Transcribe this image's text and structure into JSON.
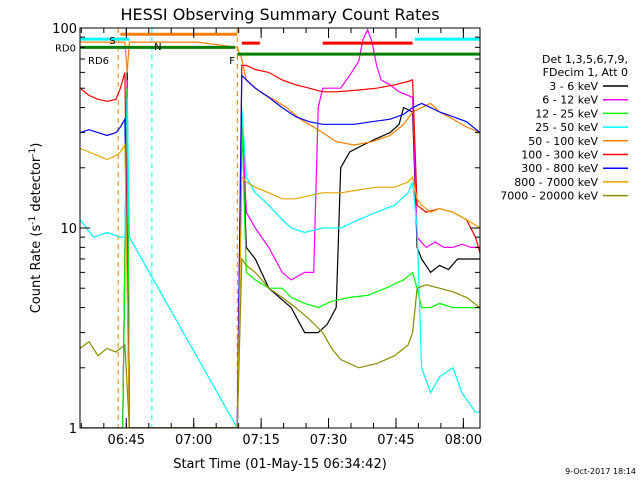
{
  "chart_data": {
    "type": "line",
    "title": "HESSI Observing Summary Count Rates",
    "xlabel": "Start Time (01-May-15 06:34:42)",
    "ylabel": "Count Rate (s",
    "ylabel_sup": "-1",
    "ylabel_tail": " detector",
    "ylabel_tail_sup": "-1",
    "ylabel_close": ")",
    "y_scale": "log",
    "ylim": [
      1,
      100
    ],
    "xlim_minutes": [
      0,
      89
    ],
    "grid": false,
    "legend_placement": "right",
    "x_ticks": [
      {
        "label": "06:45",
        "minutes": 10.3
      },
      {
        "label": "07:00",
        "minutes": 25.3
      },
      {
        "label": "07:15",
        "minutes": 40.3
      },
      {
        "label": "07:30",
        "minutes": 55.3
      },
      {
        "label": "07:45",
        "minutes": 70.3
      },
      {
        "label": "08:00",
        "minutes": 85.3
      }
    ],
    "y_ticks": [
      {
        "label": "1",
        "value": 1
      },
      {
        "label": "10",
        "value": 10
      },
      {
        "label": "100",
        "value": 100
      }
    ],
    "legend_header": [
      "Det 1,3,5,6,7,9,",
      "FDecim 1, Att 0"
    ],
    "series": [
      {
        "name": "3 - 6 keV",
        "color": "#000000",
        "points": [
          [
            0,
            1
          ],
          [
            9.5,
            1
          ],
          [
            10.5,
            60
          ],
          [
            11,
            1
          ],
          [
            35,
            1
          ],
          [
            36,
            35
          ],
          [
            37,
            8
          ],
          [
            39,
            7
          ],
          [
            42,
            5
          ],
          [
            47,
            4
          ],
          [
            50,
            3
          ],
          [
            53,
            3
          ],
          [
            55,
            3.3
          ],
          [
            57,
            4
          ],
          [
            58,
            20
          ],
          [
            60,
            24
          ],
          [
            63,
            26
          ],
          [
            66,
            28
          ],
          [
            69,
            30
          ],
          [
            71,
            33
          ],
          [
            72,
            40
          ],
          [
            74,
            38
          ],
          [
            75,
            8
          ],
          [
            76,
            7
          ],
          [
            78,
            6
          ],
          [
            80,
            6.5
          ],
          [
            82,
            6.2
          ],
          [
            84,
            7
          ],
          [
            87,
            7
          ],
          [
            89,
            7
          ]
        ]
      },
      {
        "name": "6 - 12 keV",
        "color": "#ff00ff",
        "points": [
          [
            0,
            1
          ],
          [
            9.5,
            1
          ],
          [
            10.5,
            55
          ],
          [
            11,
            1
          ],
          [
            35,
            1
          ],
          [
            36,
            38
          ],
          [
            37,
            12
          ],
          [
            39,
            10
          ],
          [
            42,
            8
          ],
          [
            45,
            6
          ],
          [
            47,
            5.5
          ],
          [
            50,
            6
          ],
          [
            52,
            6
          ],
          [
            53,
            40
          ],
          [
            54,
            50
          ],
          [
            58,
            50
          ],
          [
            60,
            58
          ],
          [
            62,
            68
          ],
          [
            63,
            88
          ],
          [
            64,
            98
          ],
          [
            65,
            85
          ],
          [
            66,
            65
          ],
          [
            67,
            55
          ],
          [
            69,
            52
          ],
          [
            71,
            48
          ],
          [
            73,
            46
          ],
          [
            74,
            45
          ],
          [
            75,
            9
          ],
          [
            77,
            8
          ],
          [
            79,
            8.5
          ],
          [
            81,
            8
          ],
          [
            83,
            8
          ],
          [
            85,
            8.3
          ],
          [
            87,
            8
          ],
          [
            89,
            8
          ]
        ]
      },
      {
        "name": "12 - 25 keV",
        "color": "#00ff00",
        "points": [
          [
            0,
            1
          ],
          [
            9.5,
            1
          ],
          [
            10.5,
            50
          ],
          [
            11,
            1
          ],
          [
            35,
            1
          ],
          [
            36,
            35
          ],
          [
            37,
            6
          ],
          [
            39,
            5.5
          ],
          [
            42,
            5
          ],
          [
            45,
            5
          ],
          [
            47,
            4.5
          ],
          [
            50,
            4.2
          ],
          [
            53,
            4
          ],
          [
            56,
            4.3
          ],
          [
            60,
            4.5
          ],
          [
            64,
            4.6
          ],
          [
            68,
            5
          ],
          [
            72,
            5.5
          ],
          [
            74,
            6
          ],
          [
            75,
            5
          ],
          [
            76,
            4
          ],
          [
            78,
            4
          ],
          [
            80,
            4.2
          ],
          [
            83,
            4
          ],
          [
            86,
            4
          ],
          [
            89,
            4
          ]
        ]
      },
      {
        "name": "25 - 50 keV",
        "color": "#00ffff",
        "points": [
          [
            0,
            11
          ],
          [
            3,
            9
          ],
          [
            6,
            9.5
          ],
          [
            9,
            9
          ],
          [
            10,
            9
          ],
          [
            10.5,
            45
          ],
          [
            11,
            9
          ],
          [
            35,
            1
          ],
          [
            36,
            40
          ],
          [
            37,
            18
          ],
          [
            39,
            15
          ],
          [
            42,
            13
          ],
          [
            45,
            11
          ],
          [
            47,
            10
          ],
          [
            50,
            9.5
          ],
          [
            54,
            10
          ],
          [
            58,
            10
          ],
          [
            62,
            11
          ],
          [
            66,
            12
          ],
          [
            70,
            13
          ],
          [
            73,
            15
          ],
          [
            74,
            17
          ],
          [
            75,
            10
          ],
          [
            76,
            2
          ],
          [
            78,
            1.5
          ],
          [
            80,
            1.8
          ],
          [
            83,
            2
          ],
          [
            85,
            1.5
          ],
          [
            88,
            1.2
          ],
          [
            89,
            1.2
          ]
        ]
      },
      {
        "name": "50 - 100 keV",
        "color": "#ff7f00",
        "points": [
          [
            0,
            85
          ],
          [
            10,
            85
          ],
          [
            10.5,
            60
          ],
          [
            11,
            85
          ],
          [
            25,
            85
          ],
          [
            26,
            85
          ],
          [
            35,
            80
          ],
          [
            36,
            70
          ],
          [
            37,
            55
          ],
          [
            40,
            48
          ],
          [
            43,
            44
          ],
          [
            46,
            40
          ],
          [
            49,
            35
          ],
          [
            52,
            32
          ],
          [
            54,
            30
          ],
          [
            57,
            27
          ],
          [
            61,
            26
          ],
          [
            65,
            27
          ],
          [
            69,
            29
          ],
          [
            72,
            33
          ],
          [
            74,
            38
          ],
          [
            76,
            40
          ],
          [
            78,
            42
          ],
          [
            80,
            38
          ],
          [
            83,
            35
          ],
          [
            86,
            32
          ],
          [
            89,
            30
          ]
        ]
      },
      {
        "name": "100 - 300 keV",
        "color": "#ff0000",
        "points": [
          [
            0,
            50
          ],
          [
            2,
            46
          ],
          [
            4,
            44
          ],
          [
            6,
            43
          ],
          [
            8,
            44
          ],
          [
            9,
            50
          ],
          [
            10,
            60
          ],
          [
            11,
            1
          ],
          [
            35,
            1
          ],
          [
            36,
            65
          ],
          [
            37,
            65
          ],
          [
            39,
            62
          ],
          [
            42,
            60
          ],
          [
            45,
            55
          ],
          [
            48,
            52
          ],
          [
            51,
            50
          ],
          [
            54,
            48
          ],
          [
            57,
            48
          ],
          [
            62,
            49
          ],
          [
            66,
            50
          ],
          [
            70,
            52
          ],
          [
            73,
            54
          ],
          [
            74,
            55
          ],
          [
            75,
            13
          ],
          [
            77,
            12
          ],
          [
            80,
            12.5
          ],
          [
            83,
            12
          ],
          [
            86,
            11
          ],
          [
            88,
            9
          ],
          [
            89,
            7.5
          ]
        ]
      },
      {
        "name": "300 - 800 keV",
        "color": "#0000ff",
        "points": [
          [
            0,
            30
          ],
          [
            2,
            31
          ],
          [
            4,
            30
          ],
          [
            6,
            29
          ],
          [
            8,
            30
          ],
          [
            9,
            32
          ],
          [
            10,
            35
          ],
          [
            11,
            1
          ],
          [
            35,
            1
          ],
          [
            36,
            58
          ],
          [
            37,
            55
          ],
          [
            39,
            50
          ],
          [
            42,
            45
          ],
          [
            45,
            40
          ],
          [
            48,
            36
          ],
          [
            51,
            34
          ],
          [
            54,
            33
          ],
          [
            57,
            33
          ],
          [
            61,
            33
          ],
          [
            65,
            34
          ],
          [
            69,
            35
          ],
          [
            72,
            37
          ],
          [
            74,
            40
          ],
          [
            76,
            42
          ],
          [
            78,
            40
          ],
          [
            80,
            38
          ],
          [
            83,
            36
          ],
          [
            86,
            34
          ],
          [
            89,
            30
          ]
        ]
      },
      {
        "name": "800 - 7000 keV",
        "color": "#e5a500",
        "points": [
          [
            0,
            25
          ],
          [
            2,
            24
          ],
          [
            4,
            23
          ],
          [
            6,
            22
          ],
          [
            8,
            23
          ],
          [
            9,
            24
          ],
          [
            10,
            26
          ],
          [
            11,
            1
          ],
          [
            35,
            1
          ],
          [
            36,
            18
          ],
          [
            37,
            17
          ],
          [
            39,
            16
          ],
          [
            42,
            15
          ],
          [
            45,
            14
          ],
          [
            48,
            14
          ],
          [
            51,
            14.5
          ],
          [
            54,
            15
          ],
          [
            58,
            15
          ],
          [
            62,
            15.5
          ],
          [
            66,
            16
          ],
          [
            70,
            16
          ],
          [
            73,
            17
          ],
          [
            74,
            18
          ],
          [
            75,
            14
          ],
          [
            76,
            13
          ],
          [
            78,
            12
          ],
          [
            80,
            12.5
          ],
          [
            83,
            12
          ],
          [
            86,
            11
          ],
          [
            89,
            10
          ]
        ]
      },
      {
        "name": "7000 - 20000 keV",
        "color": "#8b8b00",
        "points": [
          [
            0,
            2.5
          ],
          [
            2,
            2.7
          ],
          [
            4,
            2.3
          ],
          [
            6,
            2.5
          ],
          [
            8,
            2.4
          ],
          [
            9,
            2.5
          ],
          [
            10,
            2.6
          ],
          [
            11,
            1
          ],
          [
            35,
            1
          ],
          [
            36,
            7
          ],
          [
            37,
            6.5
          ],
          [
            39,
            6
          ],
          [
            42,
            5
          ],
          [
            45,
            4.5
          ],
          [
            48,
            4
          ],
          [
            51,
            3.5
          ],
          [
            54,
            3
          ],
          [
            56,
            2.5
          ],
          [
            58,
            2.2
          ],
          [
            62,
            2
          ],
          [
            66,
            2.1
          ],
          [
            70,
            2.3
          ],
          [
            73,
            2.6
          ],
          [
            74,
            3
          ],
          [
            75,
            5
          ],
          [
            77,
            5.2
          ],
          [
            80,
            5
          ],
          [
            83,
            4.8
          ],
          [
            86,
            4.5
          ],
          [
            89,
            4
          ]
        ]
      }
    ],
    "annotations": {
      "markers": [
        {
          "label": "S",
          "color": "#ff7f00",
          "minutes": 8.5
        },
        {
          "label": "N",
          "color": "#00ffff",
          "minutes": 16
        },
        {
          "label": "F",
          "color": "#ff7f00",
          "minutes": 35
        }
      ],
      "rd0_label": "RD0",
      "rd6_label": "RD6",
      "rd0_color": "#008000",
      "rd6_color": "#008000"
    }
  },
  "footer": {
    "timestamp": "9-Oct-2017 18:14"
  }
}
